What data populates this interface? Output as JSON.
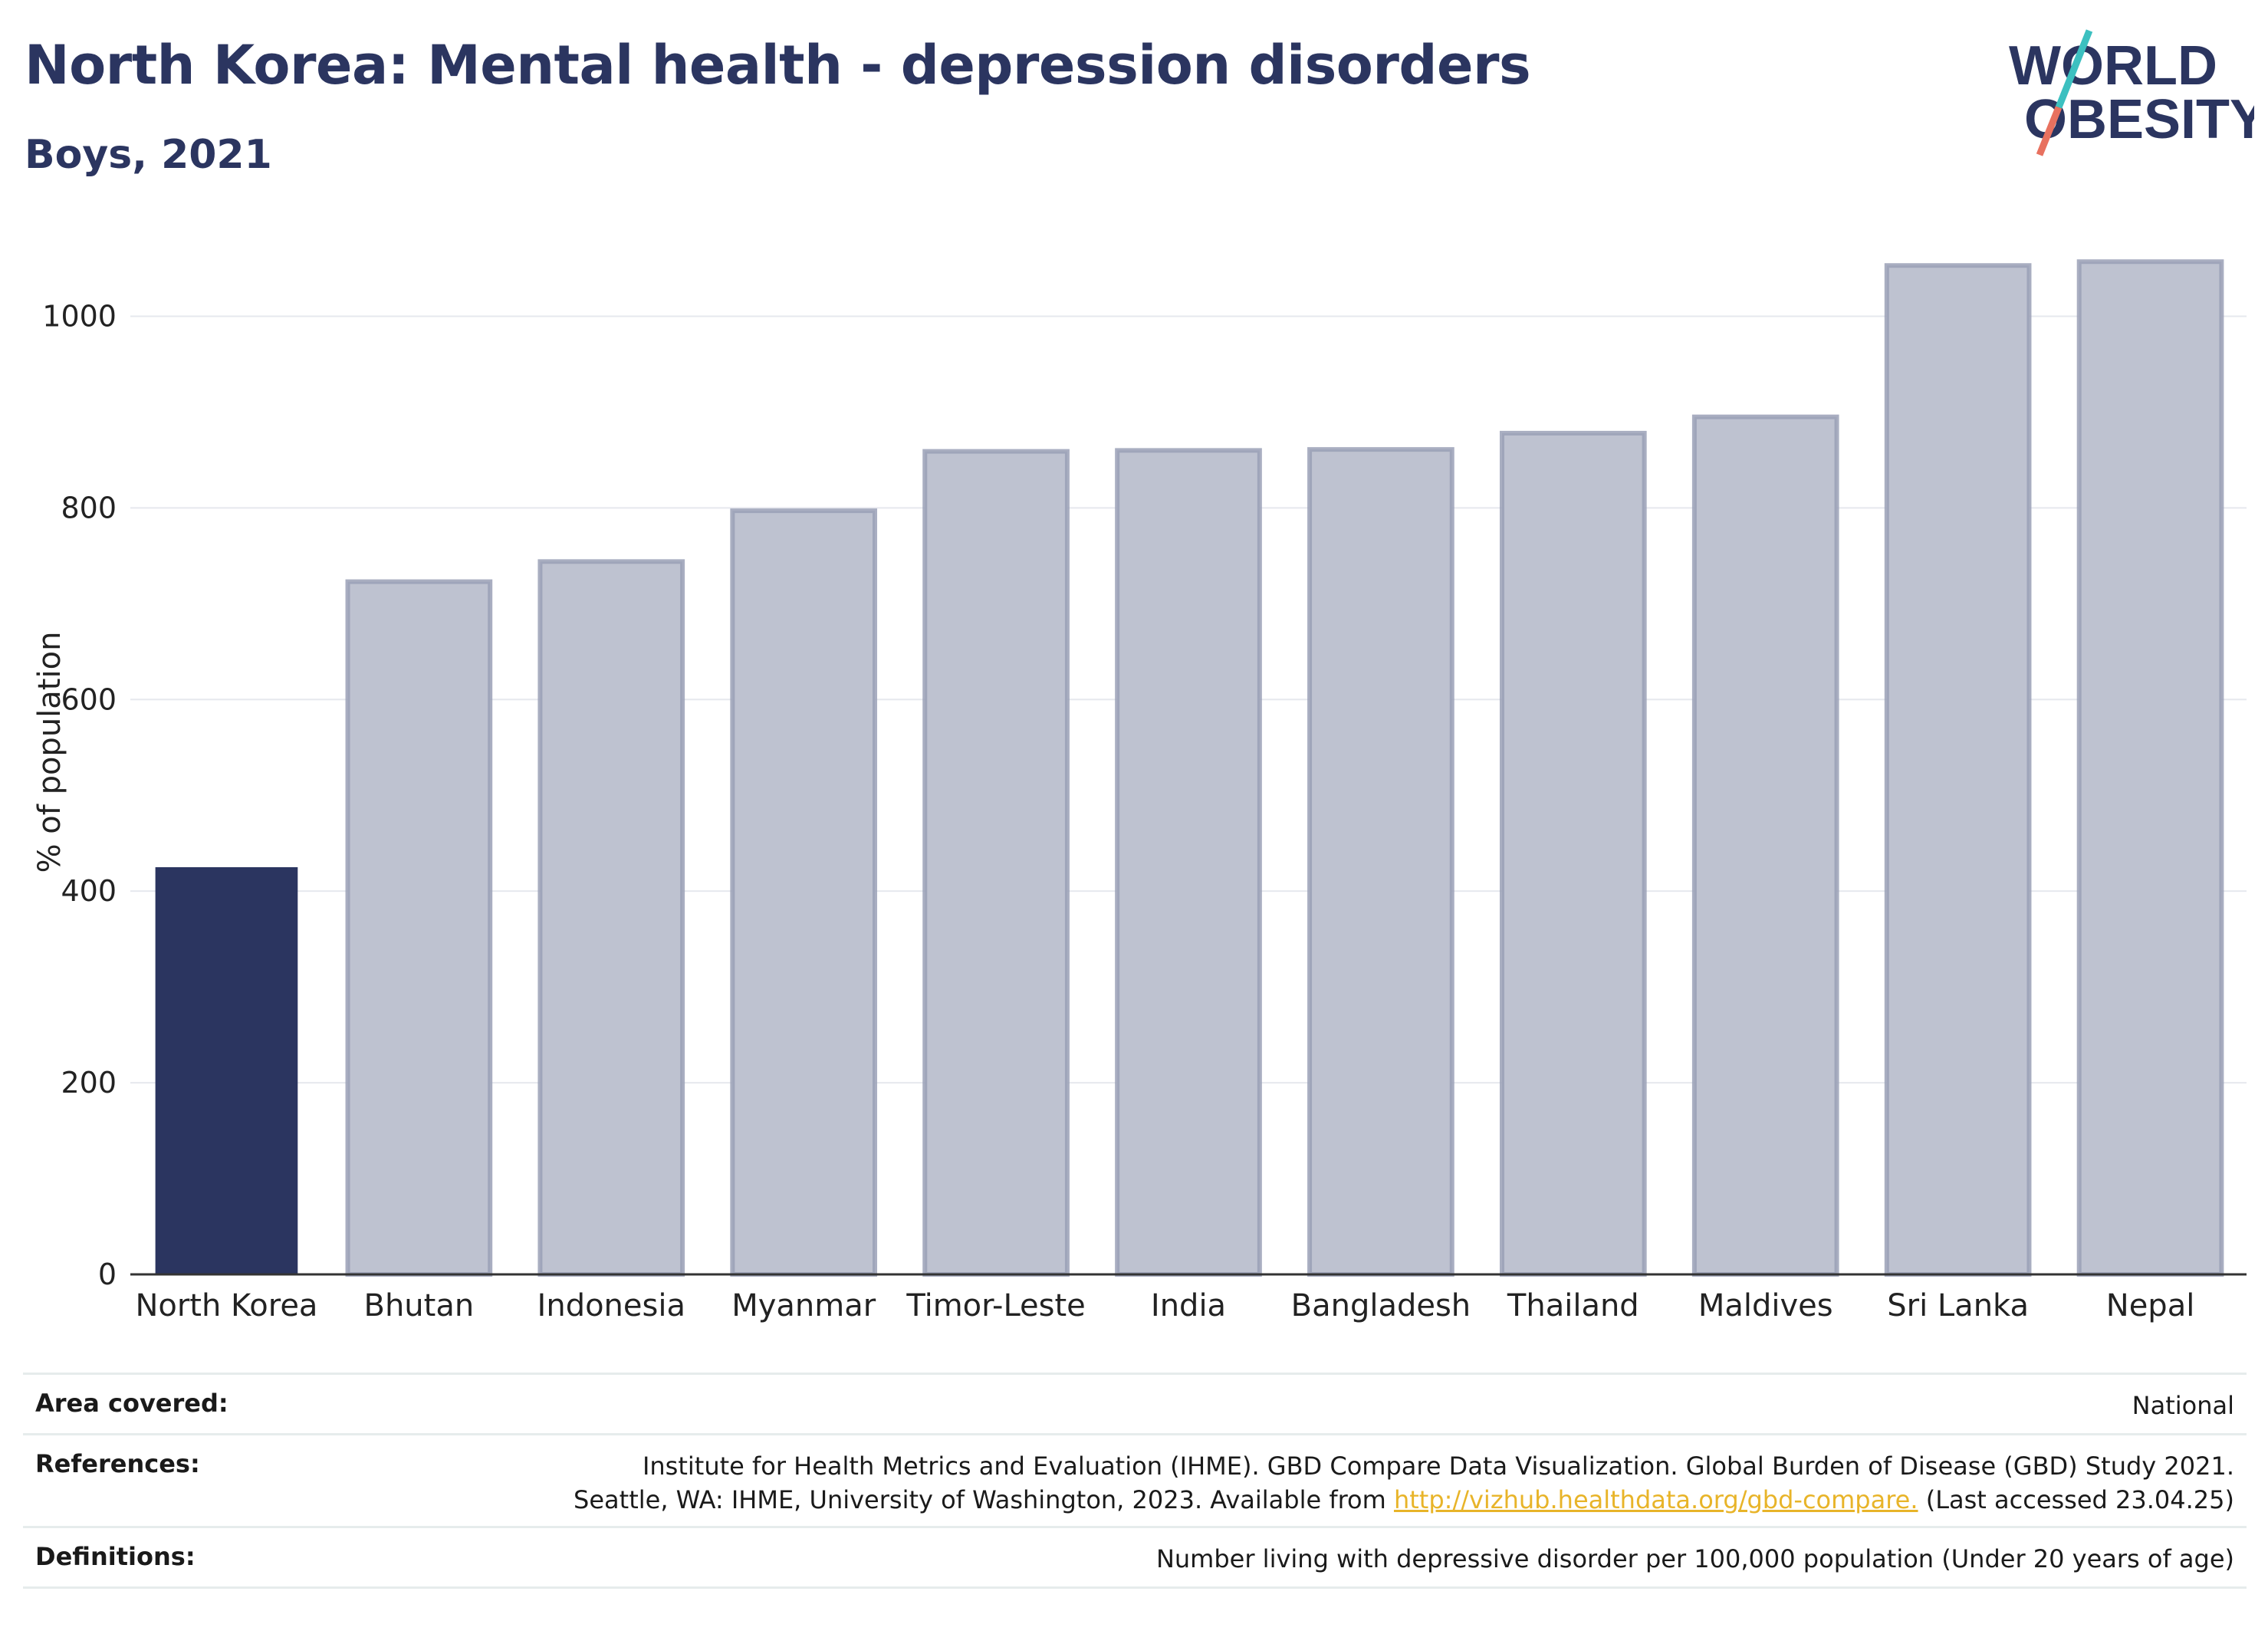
{
  "header": {
    "title": "North Korea: Mental health - depression disorders",
    "subtitle": "Boys, 2021",
    "logo_line1": "WORLD",
    "logo_line2": "OBESITY"
  },
  "chart_data": {
    "type": "bar",
    "categories": [
      "North Korea",
      "Bhutan",
      "Indonesia",
      "Myanmar",
      "Timor-Leste",
      "India",
      "Bangladesh",
      "Thailand",
      "Maldives",
      "Sri Lanka",
      "Nepal"
    ],
    "values": [
      425,
      723,
      744,
      797,
      859,
      860,
      861,
      878,
      895,
      1053,
      1057
    ],
    "highlight": "North Korea",
    "ylabel": "% of population",
    "xlabel": "",
    "ylim": [
      0,
      1090
    ],
    "yticks": [
      0,
      200,
      400,
      600,
      800,
      1000
    ],
    "grid": true,
    "colors": {
      "highlight": "#2b3560",
      "other": "#bec2d0",
      "other_stroke": "#9aa0b6"
    }
  },
  "footer": {
    "area_label": "Area covered:",
    "area_value": "National",
    "refs_label": "References:",
    "refs_line1": "Institute for Health Metrics and Evaluation (IHME). GBD Compare Data Visualization. Global Burden of Disease (GBD) Study 2021.",
    "refs_line2_pre": "Seattle, WA: IHME, University of Washington, 2023. Available from ",
    "refs_link": "http://vizhub.healthdata.org/gbd-compare.",
    "refs_line2_post": " (Last accessed 23.04.25)",
    "defs_label": "Definitions:",
    "defs_value": "Number living with depressive disorder per 100,000 population (Under 20 years of age)"
  }
}
